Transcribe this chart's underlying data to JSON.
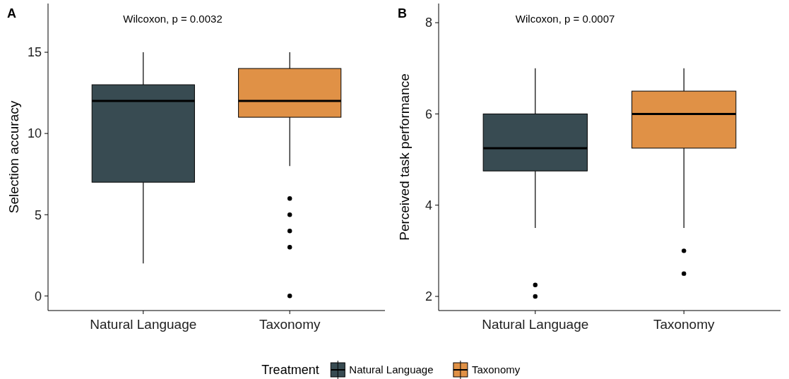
{
  "chart_data": [
    {
      "type": "box",
      "annotations": [
        "A",
        "Wilcoxon, p = 0.0032"
      ],
      "ylabel": "Selection accuracy",
      "categories": [
        "Natural Language",
        "Taxonomy"
      ],
      "ylim": [
        -0.9,
        18
      ],
      "yticks": [
        0,
        5,
        10,
        15
      ],
      "legend": "bottom",
      "legend_title": "Treatment",
      "series": [
        {
          "name": "Natural Language",
          "color": "#384b52",
          "boxes": [
            {
              "low": 2,
              "q1": 7,
              "median": 12,
              "q3": 13,
              "high": 15
            },
            null
          ]
        },
        {
          "name": "Taxonomy",
          "color": "#e09146",
          "boxes": [
            null,
            {
              "low": 8,
              "q1": 11,
              "median": 12,
              "q3": 14,
              "high": 15,
              "outliers": [
                6,
                5,
                4,
                3,
                0
              ]
            }
          ]
        }
      ]
    },
    {
      "type": "box",
      "annotations": [
        "B",
        "Wilcoxon, p = 0.0007"
      ],
      "ylabel": "Perceived task performance",
      "categories": [
        "Natural Language",
        "Taxonomy"
      ],
      "ylim": [
        1.69,
        8.42
      ],
      "yticks": [
        2,
        4,
        6,
        8
      ],
      "series": [
        {
          "color": "#384b52",
          "boxes": [
            {
              "low": 3.5,
              "q1": 4.75,
              "median": 5.25,
              "q3": 6,
              "high": 7,
              "outliers": [
                2.25,
                2
              ]
            },
            null
          ]
        },
        {
          "color": "#e09146",
          "boxes": [
            null,
            {
              "low": 3.5,
              "q1": 5.25,
              "median": 6,
              "q3": 6.5,
              "high": 7,
              "outliers": [
                3,
                2.5
              ]
            }
          ]
        }
      ]
    }
  ]
}
